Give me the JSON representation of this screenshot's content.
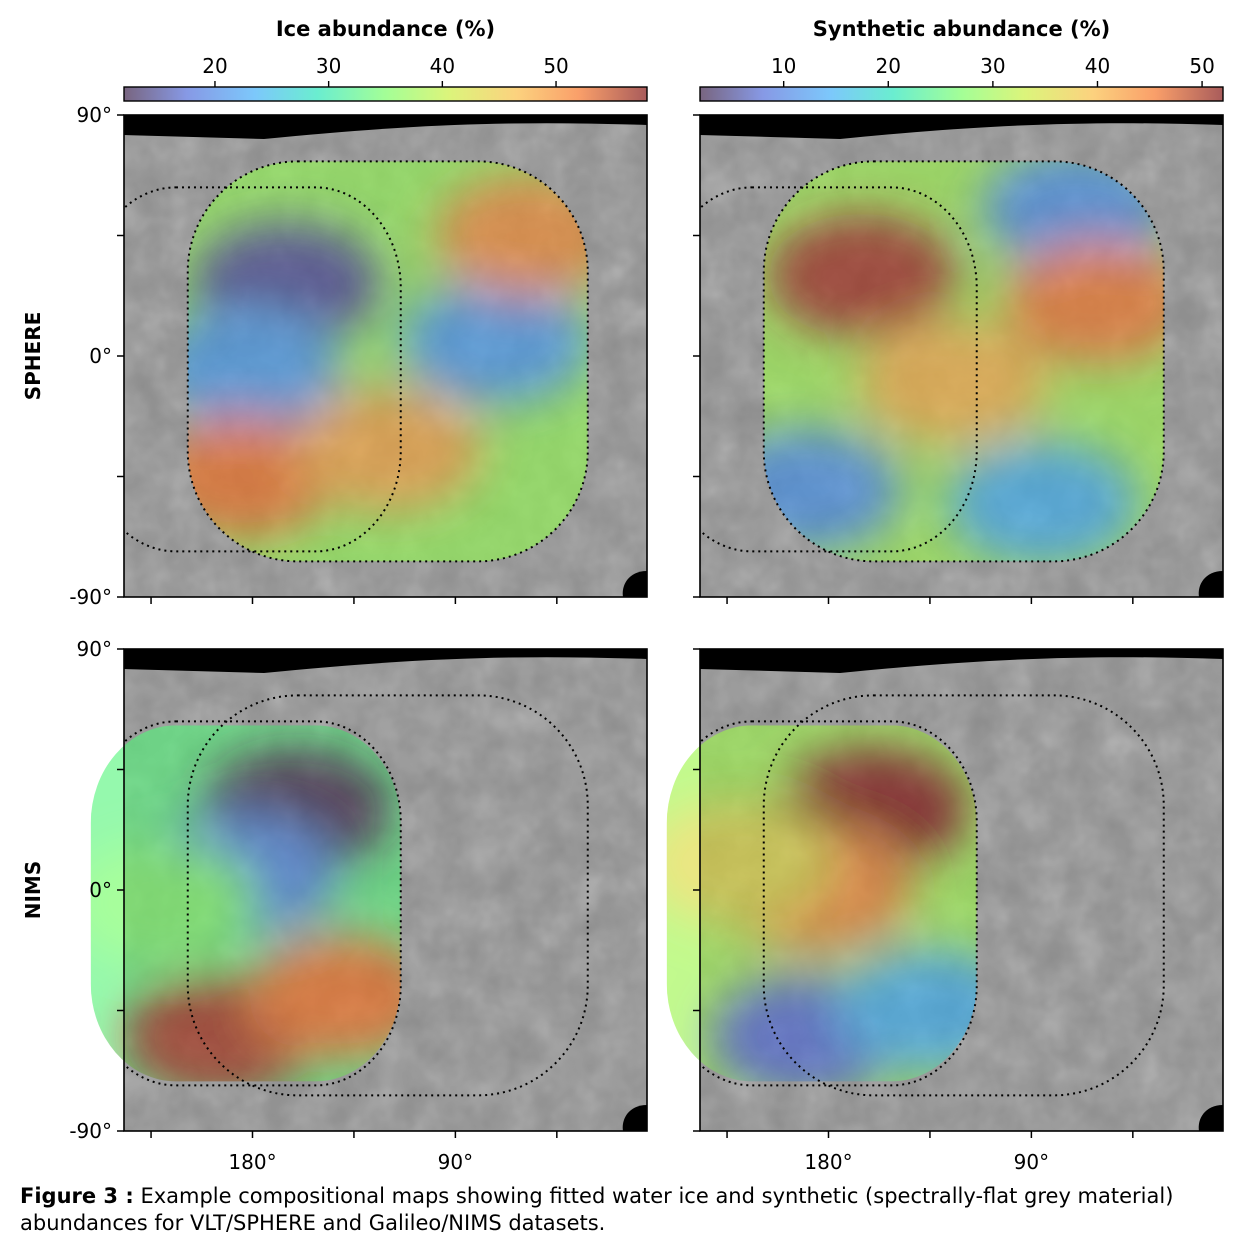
{
  "figure": {
    "caption_label": "Figure 3 :",
    "caption_text": "Example compositional maps showing fitted water ice and synthetic (spectrally-flat grey material) abundances for VLT/SPHERE and Galileo/NIMS datasets."
  },
  "colors": {
    "frame": "#000000",
    "map_grey": "#8c8c8c",
    "dotted_outline": "#000000"
  },
  "colormap_name": "turbo",
  "chart_data": [
    {
      "type": "heatmap",
      "row_label": "SPHERE",
      "colorbar": {
        "label": "Ice abundance (%)",
        "range": [
          12,
          58
        ],
        "ticks": [
          20,
          30,
          40,
          50
        ]
      },
      "ylabels": [
        "90°",
        "0°",
        "-90°"
      ],
      "xlabels": [],
      "blobs": [
        {
          "lon": 150,
          "lat": 27,
          "value": 15
        },
        {
          "lon": 168,
          "lat": -5,
          "value": 22
        },
        {
          "lon": 57,
          "lat": 5,
          "value": 22
        },
        {
          "lon": 170,
          "lat": -45,
          "value": 52
        },
        {
          "lon": 105,
          "lat": -35,
          "value": 48
        },
        {
          "lon": 42,
          "lat": 45,
          "value": 50
        }
      ],
      "base_value": 37
    },
    {
      "type": "heatmap",
      "row_label": "",
      "colorbar": {
        "label": "Synthetic abundance (%)",
        "range": [
          2,
          52
        ],
        "ticks": [
          10,
          20,
          30,
          40,
          50
        ]
      },
      "ylabels": [],
      "xlabels": [],
      "blobs": [
        {
          "lon": 150,
          "lat": 30,
          "value": 50
        },
        {
          "lon": 110,
          "lat": -10,
          "value": 40
        },
        {
          "lon": 175,
          "lat": -50,
          "value": 12
        },
        {
          "lon": 70,
          "lat": -55,
          "value": 15
        },
        {
          "lon": 55,
          "lat": 55,
          "value": 12
        },
        {
          "lon": 45,
          "lat": 20,
          "value": 45
        }
      ],
      "base_value": 30
    },
    {
      "type": "heatmap",
      "row_label": "NIMS",
      "colorbar": null,
      "ylabels": [
        "90°",
        "0°",
        "-90°"
      ],
      "xlabels": [
        "180°",
        "90°"
      ],
      "blobs": [
        {
          "lon": 145,
          "lat": 30,
          "value": 10
        },
        {
          "lon": 170,
          "lat": 5,
          "value": 20
        },
        {
          "lon": 180,
          "lat": -55,
          "value": 56
        },
        {
          "lon": 125,
          "lat": -40,
          "value": 52
        },
        {
          "lon": 205,
          "lat": -5,
          "value": 35
        }
      ],
      "base_value": 33
    },
    {
      "type": "heatmap",
      "row_label": "",
      "colorbar": null,
      "ylabels": [],
      "xlabels": [
        "180°",
        "90°"
      ],
      "blobs": [
        {
          "lon": 145,
          "lat": 30,
          "value": 52
        },
        {
          "lon": 170,
          "lat": 0,
          "value": 44
        },
        {
          "lon": 175,
          "lat": -55,
          "value": 8
        },
        {
          "lon": 120,
          "lat": -45,
          "value": 15
        },
        {
          "lon": 205,
          "lat": 10,
          "value": 36
        }
      ],
      "base_value": 30
    }
  ]
}
